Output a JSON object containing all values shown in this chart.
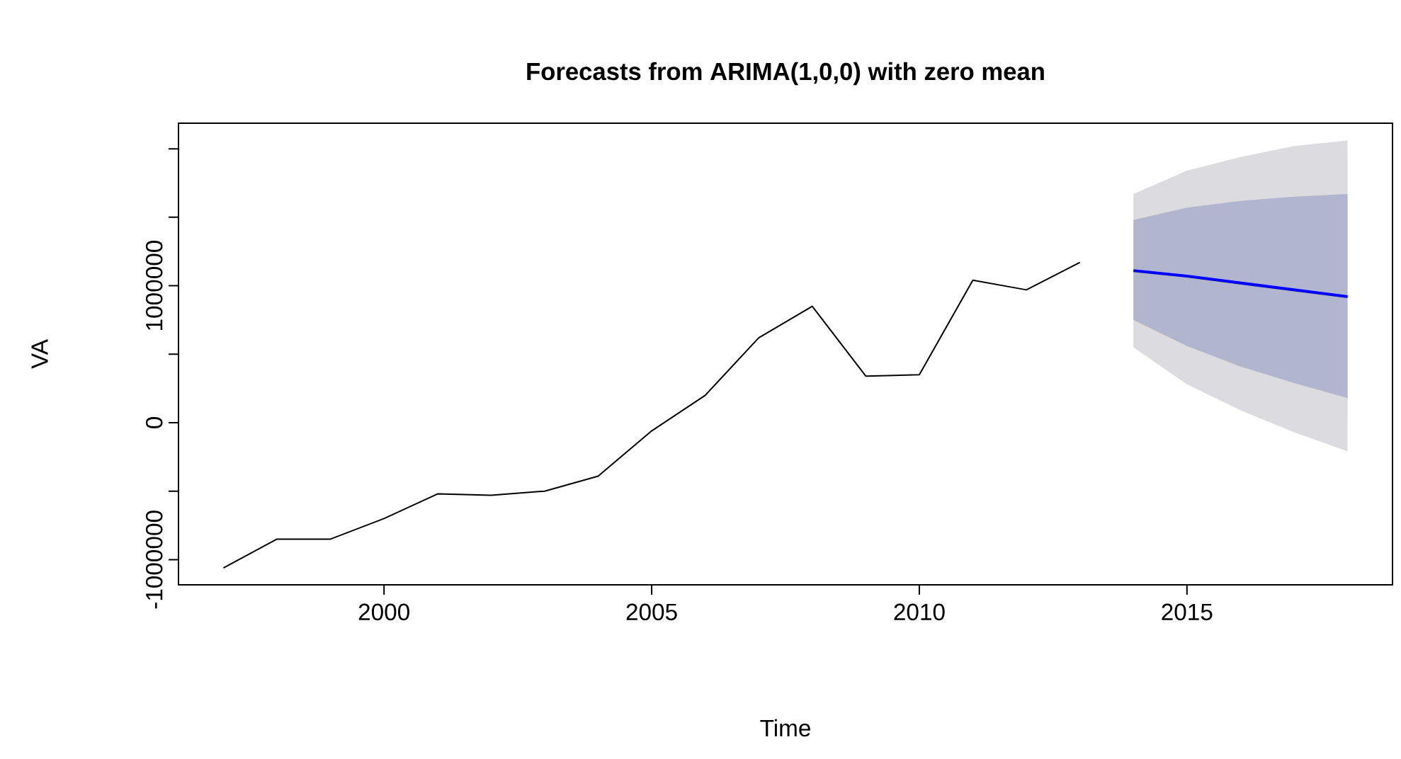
{
  "chart_data": {
    "type": "line",
    "title": "Forecasts from ARIMA(1,0,0) with zero mean",
    "xlabel": "Time",
    "ylabel": "VA",
    "xlim": [
      1996.16,
      2018.84
    ],
    "ylim": [
      -1184000,
      2187000
    ],
    "xticks": [
      2000,
      2005,
      2010,
      2015
    ],
    "yticks": [
      -1000000,
      {
        "value": -500000,
        "label": null
      },
      0,
      {
        "value": 500000,
        "label": null
      },
      1000000,
      {
        "value": 1500000,
        "label": null
      },
      {
        "value": 2000000,
        "label": null
      }
    ],
    "series": [
      {
        "color": "#dbdbe0",
        "x": [
          2014,
          2015,
          2016,
          2017,
          2018
        ],
        "values": [
          null,
          null,
          null,
          null,
          null
        ],
        "upper": [
          1670000,
          1840000,
          1940000,
          2020000,
          2060000
        ],
        "lower": [
          550000,
          280000,
          90000,
          -70000,
          -210000
        ]
      },
      {
        "color": "#b1b5ce",
        "x": [
          2014,
          2015,
          2016,
          2017,
          2018
        ],
        "values": [
          null,
          null,
          null,
          null,
          null
        ],
        "upper": [
          1480000,
          1570000,
          1620000,
          1650000,
          1670000
        ],
        "lower": [
          750000,
          560000,
          410000,
          290000,
          180000
        ]
      },
      {
        "color": "#000000",
        "x": [
          1997,
          1998,
          1999,
          2000,
          2001,
          2002,
          2003,
          2004,
          2005,
          2006,
          2007,
          2008,
          2009,
          2010,
          2011,
          2012,
          2013
        ],
        "values": [
          -1060000,
          -850000,
          -850000,
          -700000,
          -520000,
          -530000,
          -500000,
          -390000,
          -60000,
          200000,
          620000,
          850000,
          340000,
          350000,
          1040000,
          970000,
          1170000
        ]
      },
      {
        "color": "#0000ff",
        "x": [
          2014,
          2015,
          2016,
          2017,
          2018
        ],
        "values": [
          1110000,
          1070000,
          1020000,
          970000,
          920000
        ]
      }
    ]
  }
}
